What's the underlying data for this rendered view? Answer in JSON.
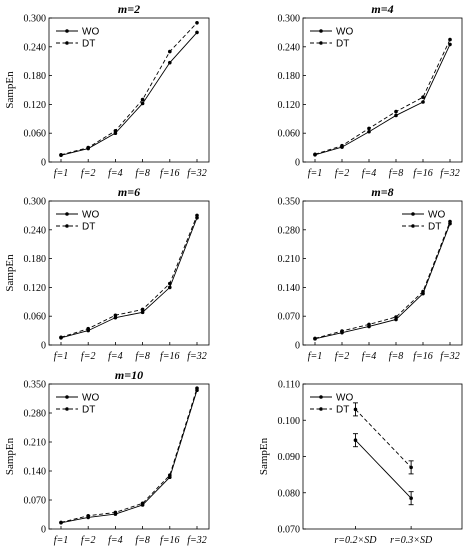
{
  "chart_data": [
    {
      "type": "line",
      "title": "m=2",
      "ylabel": "SampEn",
      "categories": [
        "f=1",
        "f=2",
        "f=4",
        "f=8",
        "f=16",
        "f=32"
      ],
      "ylim": [
        0,
        0.3
      ],
      "yticks": [
        "0",
        "0.060",
        "0.120",
        "0.180",
        "0.240",
        "0.300"
      ],
      "legend": "top-left",
      "series": [
        {
          "name": "WO",
          "style": "solid",
          "values": [
            0.014,
            0.028,
            0.06,
            0.122,
            0.207,
            0.27
          ]
        },
        {
          "name": "DT",
          "style": "dashed",
          "values": [
            0.015,
            0.03,
            0.065,
            0.13,
            0.23,
            0.29
          ]
        }
      ]
    },
    {
      "type": "line",
      "title": "m=4",
      "ylabel": "",
      "categories": [
        "f=1",
        "f=2",
        "f=4",
        "f=8",
        "f=16",
        "f=32"
      ],
      "ylim": [
        0,
        0.3
      ],
      "yticks": [
        "0",
        "0.060",
        "0.120",
        "0.180",
        "0.240",
        "0.300"
      ],
      "legend": "top-left",
      "series": [
        {
          "name": "WO",
          "style": "solid",
          "values": [
            0.015,
            0.031,
            0.063,
            0.097,
            0.125,
            0.245
          ]
        },
        {
          "name": "DT",
          "style": "dashed",
          "values": [
            0.016,
            0.034,
            0.07,
            0.105,
            0.135,
            0.255
          ]
        }
      ]
    },
    {
      "type": "line",
      "title": "m=6",
      "ylabel": "SampEn",
      "categories": [
        "f=1",
        "f=2",
        "f=4",
        "f=8",
        "f=16",
        "f=32"
      ],
      "ylim": [
        0,
        0.3
      ],
      "yticks": [
        "0",
        "0.060",
        "0.120",
        "0.180",
        "0.240",
        "0.300"
      ],
      "legend": "top-left",
      "series": [
        {
          "name": "WO",
          "style": "solid",
          "values": [
            0.015,
            0.03,
            0.057,
            0.068,
            0.12,
            0.265
          ]
        },
        {
          "name": "DT",
          "style": "dashed",
          "values": [
            0.016,
            0.034,
            0.062,
            0.074,
            0.128,
            0.27
          ]
        }
      ]
    },
    {
      "type": "line",
      "title": "m=8",
      "ylabel": "",
      "categories": [
        "f=1",
        "f=2",
        "f=4",
        "f=8",
        "f=16",
        "f=32"
      ],
      "ylim": [
        0,
        0.35
      ],
      "yticks": [
        "0",
        "0.070",
        "0.140",
        "0.210",
        "0.280",
        "0.350"
      ],
      "legend": "top-right",
      "series": [
        {
          "name": "WO",
          "style": "solid",
          "values": [
            0.015,
            0.03,
            0.045,
            0.062,
            0.125,
            0.295
          ]
        },
        {
          "name": "DT",
          "style": "dashed",
          "values": [
            0.016,
            0.034,
            0.05,
            0.068,
            0.13,
            0.3
          ]
        }
      ]
    },
    {
      "type": "line",
      "title": "m=10",
      "ylabel": "SampEn",
      "categories": [
        "f=1",
        "f=2",
        "f=4",
        "f=8",
        "f=16",
        "f=32"
      ],
      "ylim": [
        0,
        0.35
      ],
      "yticks": [
        "0",
        "0.070",
        "0.140",
        "0.210",
        "0.280",
        "0.350"
      ],
      "legend": "top-left",
      "series": [
        {
          "name": "WO",
          "style": "solid",
          "values": [
            0.015,
            0.028,
            0.036,
            0.058,
            0.125,
            0.335
          ]
        },
        {
          "name": "DT",
          "style": "dashed",
          "values": [
            0.016,
            0.032,
            0.04,
            0.062,
            0.13,
            0.34
          ]
        }
      ]
    },
    {
      "type": "line",
      "title": "",
      "ylabel": "SampEn",
      "categories": [
        "r=0.2×SD",
        "r=0.3×SD"
      ],
      "ylim": [
        0.07,
        0.11
      ],
      "yticks": [
        "0.070",
        "0.080",
        "0.090",
        "0.100",
        "0.110"
      ],
      "legend": "top-left",
      "error_bars": true,
      "series": [
        {
          "name": "WO",
          "style": "solid",
          "values": [
            0.0945,
            0.0785
          ],
          "errors": [
            0.0018,
            0.0018
          ]
        },
        {
          "name": "DT",
          "style": "dashed",
          "values": [
            0.103,
            0.087
          ],
          "errors": [
            0.0018,
            0.0018
          ]
        }
      ]
    }
  ]
}
